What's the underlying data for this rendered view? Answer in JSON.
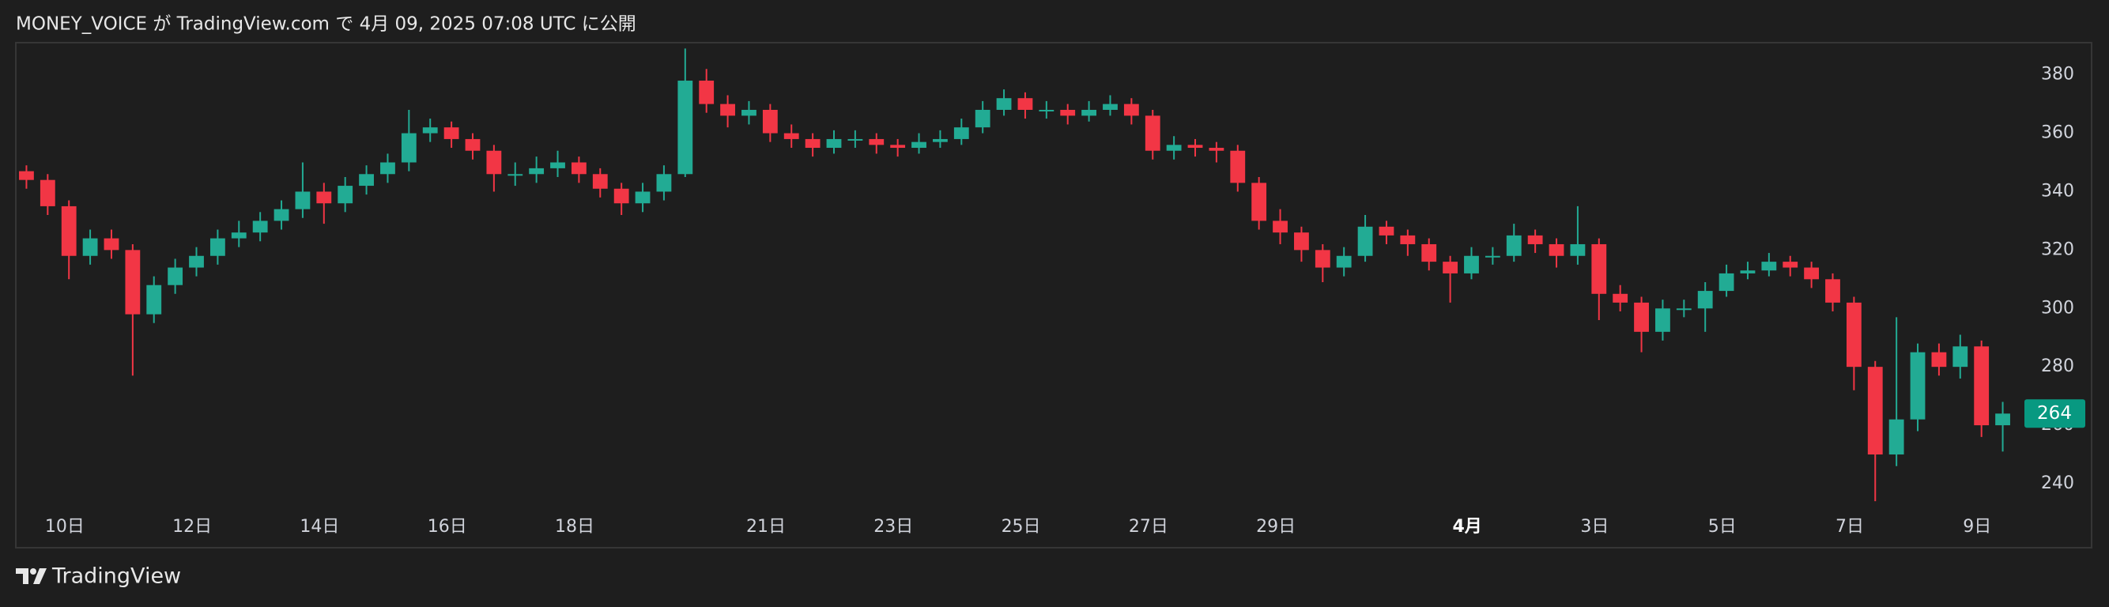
{
  "header": {
    "text": "MONEY_VOICE が TradingView.com で 4月 09, 2025 07:08 UTC に公開"
  },
  "footer": {
    "brand": "TradingView"
  },
  "chart_data": {
    "type": "candlestick",
    "up_color": "#22ab94",
    "down_color": "#f23645",
    "last_price_color": "#089981",
    "xlim": [
      -0.5,
      93.5
    ],
    "xticks": [
      {
        "value": 1.8,
        "label": "10日"
      },
      {
        "value": 7.8,
        "label": "12日"
      },
      {
        "value": 13.8,
        "label": "14日"
      },
      {
        "value": 19.8,
        "label": "16日"
      },
      {
        "value": 25.8,
        "label": "18日"
      },
      {
        "value": 34.8,
        "label": "21日"
      },
      {
        "value": 40.8,
        "label": "23日"
      },
      {
        "value": 46.8,
        "label": "25日"
      },
      {
        "value": 52.8,
        "label": "27日"
      },
      {
        "value": 58.8,
        "label": "29日"
      },
      {
        "value": 67.8,
        "label": "4月",
        "bold": true
      },
      {
        "value": 73.8,
        "label": "3日"
      },
      {
        "value": 79.8,
        "label": "5日"
      },
      {
        "value": 85.8,
        "label": "7日"
      },
      {
        "value": 91.8,
        "label": "9日"
      }
    ],
    "ylim": [
      227,
      391
    ],
    "yticks": [
      240,
      260,
      280,
      300,
      320,
      340,
      360,
      380
    ],
    "open": [
      347,
      344,
      335,
      318,
      324,
      320,
      298,
      308,
      314,
      318,
      324,
      326,
      330,
      334,
      340,
      336,
      342,
      346,
      350,
      360,
      362,
      358,
      354,
      346,
      346,
      348,
      350,
      346,
      341,
      336,
      340,
      346,
      378,
      370,
      366,
      368,
      360,
      358,
      355,
      358,
      358,
      356,
      355,
      357,
      358,
      362,
      368,
      372,
      368,
      368,
      366,
      368,
      370,
      366,
      354,
      356,
      355,
      354,
      343,
      330,
      326,
      320,
      314,
      318,
      328,
      325,
      322,
      316,
      312,
      318,
      318,
      325,
      322,
      318,
      322,
      305,
      302,
      292,
      300,
      300,
      306,
      312,
      313,
      316,
      314,
      310,
      302,
      280,
      250,
      262,
      285,
      280,
      287,
      260
    ],
    "high": [
      349,
      346,
      337,
      327,
      327,
      322,
      311,
      317,
      321,
      327,
      330,
      333,
      337,
      350,
      343,
      345,
      349,
      353,
      368,
      365,
      364,
      360,
      356,
      350,
      352,
      354,
      352,
      348,
      343,
      343,
      349,
      389,
      382,
      373,
      371,
      370,
      363,
      360,
      361,
      361,
      360,
      358,
      360,
      361,
      365,
      371,
      375,
      374,
      371,
      370,
      371,
      373,
      372,
      368,
      359,
      358,
      357,
      356,
      345,
      334,
      328,
      322,
      321,
      332,
      330,
      327,
      324,
      318,
      321,
      321,
      329,
      327,
      324,
      335,
      324,
      308,
      304,
      303,
      303,
      309,
      315,
      316,
      319,
      318,
      316,
      312,
      304,
      282,
      297,
      288,
      288,
      291,
      289,
      268
    ],
    "low": [
      341,
      332,
      310,
      315,
      317,
      277,
      295,
      305,
      311,
      315,
      321,
      323,
      327,
      331,
      329,
      333,
      339,
      343,
      347,
      357,
      355,
      351,
      340,
      342,
      343,
      345,
      343,
      338,
      332,
      333,
      337,
      345,
      367,
      362,
      363,
      357,
      355,
      352,
      353,
      355,
      353,
      352,
      353,
      355,
      356,
      360,
      366,
      365,
      365,
      363,
      364,
      366,
      363,
      351,
      351,
      352,
      350,
      340,
      327,
      322,
      316,
      309,
      311,
      316,
      322,
      318,
      313,
      302,
      310,
      315,
      316,
      319,
      314,
      315,
      296,
      299,
      285,
      289,
      297,
      292,
      304,
      310,
      311,
      311,
      307,
      299,
      272,
      234,
      246,
      258,
      277,
      276,
      256,
      251
    ],
    "close": [
      344,
      335,
      318,
      324,
      320,
      298,
      308,
      314,
      318,
      324,
      326,
      330,
      334,
      340,
      336,
      342,
      346,
      350,
      360,
      362,
      358,
      354,
      346,
      346,
      348,
      350,
      346,
      341,
      336,
      340,
      346,
      378,
      370,
      366,
      368,
      360,
      358,
      355,
      358,
      358,
      356,
      355,
      357,
      358,
      362,
      368,
      372,
      368,
      368,
      366,
      368,
      370,
      366,
      354,
      356,
      355,
      354,
      343,
      330,
      326,
      320,
      314,
      318,
      328,
      325,
      322,
      316,
      312,
      318,
      318,
      325,
      322,
      318,
      322,
      305,
      302,
      292,
      300,
      300,
      306,
      312,
      313,
      316,
      314,
      310,
      302,
      280,
      250,
      262,
      285,
      280,
      287,
      260,
      264
    ]
  }
}
